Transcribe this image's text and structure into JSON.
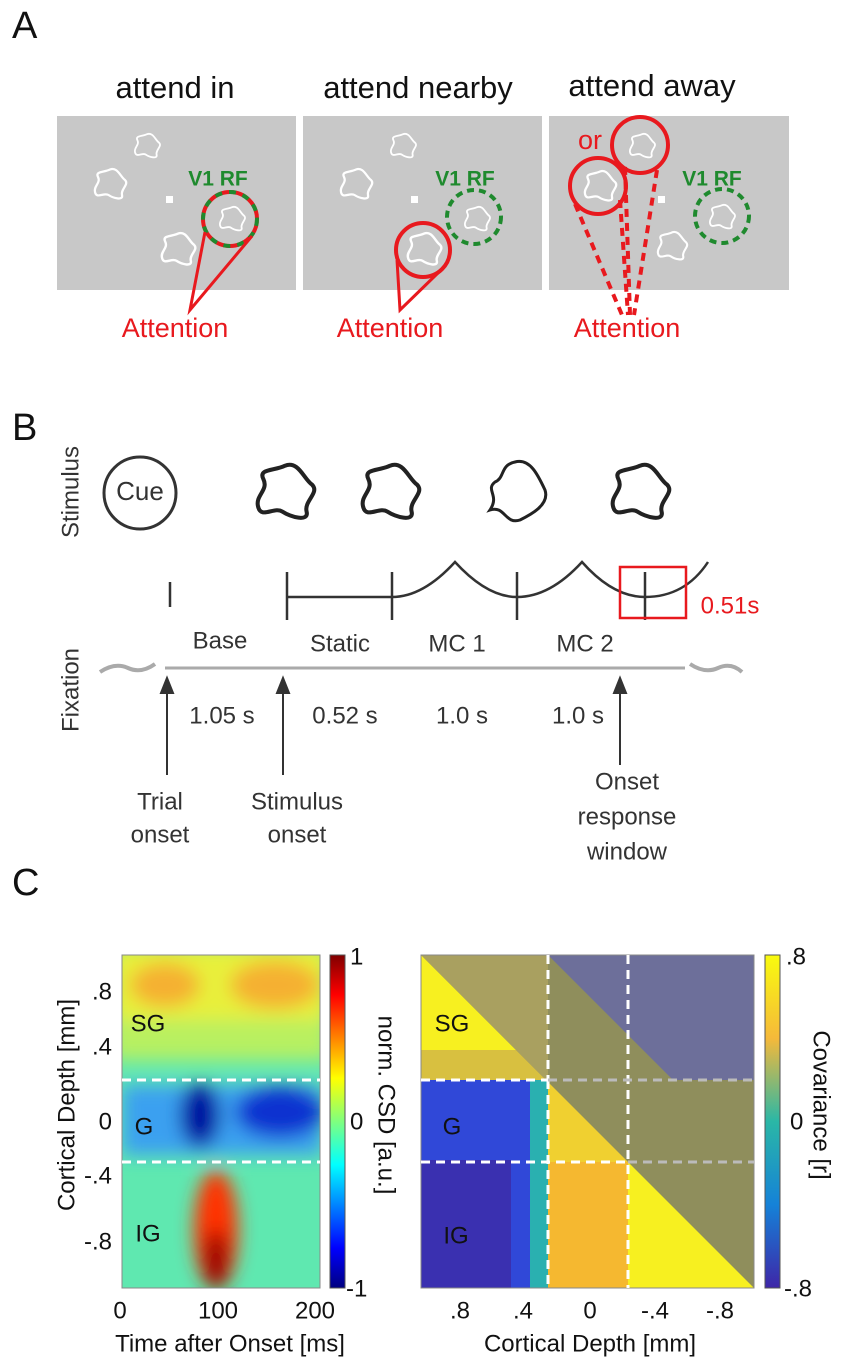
{
  "panel_a": {
    "label": "A",
    "titles": [
      "attend in",
      "attend nearby",
      "attend away"
    ],
    "rf_label": "V1 RF",
    "attention_label": "Attention",
    "or_label": "or"
  },
  "panel_b": {
    "label": "B",
    "stimulus_label": "Stimulus",
    "fixation_label": "Fixation",
    "cue": "Cue",
    "epochs": [
      "Base",
      "Static",
      "MC 1",
      "MC 2"
    ],
    "durations": [
      "1.05 s",
      "0.52 s",
      "1.0 s",
      "1.0 s"
    ],
    "window": "0.51s",
    "events": [
      [
        "Trial",
        "onset"
      ],
      [
        "Stimulus",
        "onset"
      ],
      [
        "Onset",
        "response",
        "window"
      ]
    ]
  },
  "panel_c": {
    "label": "C",
    "left": {
      "xlabel": "Time after Onset [ms]",
      "ylabel": "Cortical Depth [mm]",
      "xticks": [
        "0",
        "100",
        "200"
      ],
      "yticks": [
        ".8",
        ".4",
        "0",
        "-.4",
        "-.8"
      ],
      "layers": [
        "SG",
        "G",
        "IG"
      ],
      "colorbar_label": "norm. CSD [a.u.]",
      "colorbar_ticks": [
        "1",
        "0",
        "-1"
      ]
    },
    "right": {
      "xlabel": "Cortical Depth [mm]",
      "xticks": [
        ".8",
        ".4",
        "0",
        "-.4",
        "-.8"
      ],
      "layers": [
        "SG",
        "G",
        "IG"
      ],
      "colorbar_label": "Covariance [r]",
      "colorbar_ticks": [
        ".8",
        "0",
        "-.8"
      ]
    }
  }
}
